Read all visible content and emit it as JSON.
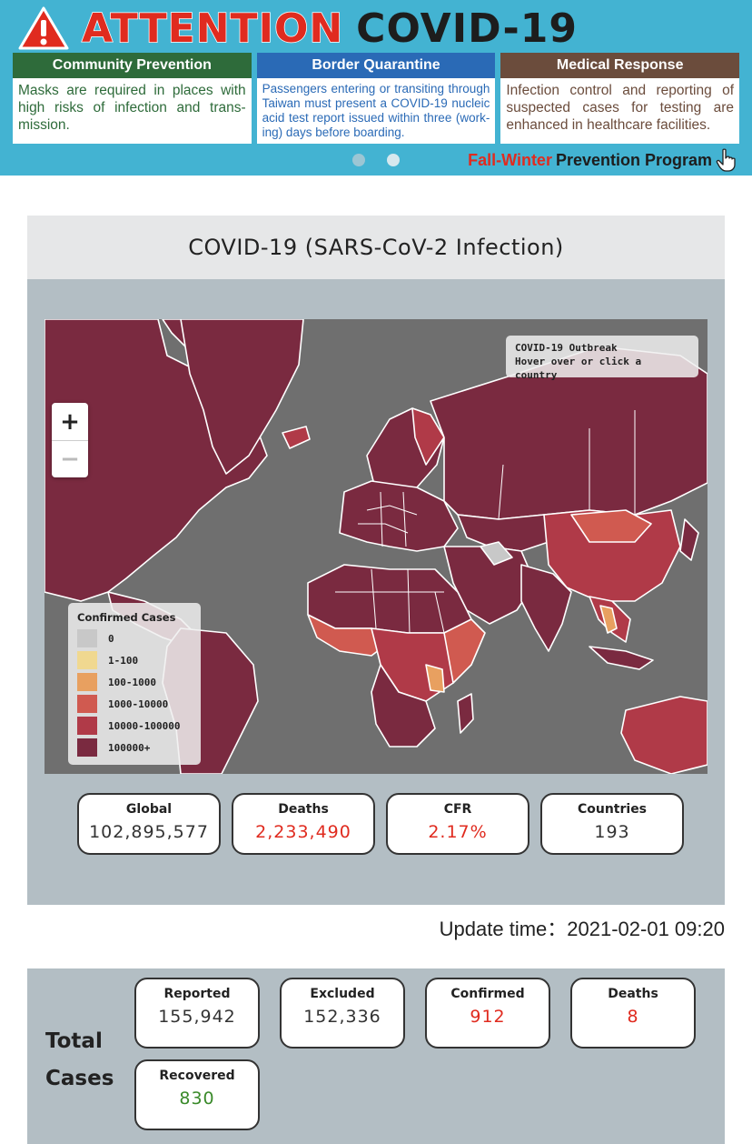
{
  "banner": {
    "title_attention": "ATTENTION",
    "title_covid": "COVID-19",
    "cards": [
      {
        "heading": "Community Prevention",
        "text": "Masks are required in places with high risks of infection and trans-mission."
      },
      {
        "heading": "Border Quarantine",
        "text": "Passengers entering or transiting through Taiwan must present a COVID-19 nucleic acid test report issued within three (work-ing) days before boarding."
      },
      {
        "heading": "Medical Response",
        "text": "Infection control and reporting of suspected cases for testing are enhanced in healthcare facilities."
      }
    ],
    "program_highlight": "Fall-Winter",
    "program_rest": "Prevention Program",
    "carousel_active_index": 1,
    "icons": {
      "warning": "warning-triangle-icon",
      "pointer": "hand-pointer-icon"
    }
  },
  "panel": {
    "title": "COVID-19 (SARS-CoV-2 Infection)"
  },
  "map": {
    "zoom_in": "+",
    "zoom_out": "−",
    "info_title": "COVID-19 Outbreak",
    "info_hint": "Hover over or click a country",
    "legend": {
      "title": "Confirmed Cases",
      "items": [
        {
          "label": "0",
          "color": "#c8c8c8"
        },
        {
          "label": "1-100",
          "color": "#f0d890"
        },
        {
          "label": "100-1000",
          "color": "#e8a060"
        },
        {
          "label": "1000-10000",
          "color": "#d05a50"
        },
        {
          "label": "10000-100000",
          "color": "#b03a48"
        },
        {
          "label": "100000+",
          "color": "#7a2a40"
        }
      ]
    }
  },
  "global_stats": [
    {
      "label": "Global",
      "value": "102,895,577",
      "style": "normal"
    },
    {
      "label": "Deaths",
      "value": "2,233,490",
      "style": "red"
    },
    {
      "label": "CFR",
      "value": "2.17%",
      "style": "red"
    },
    {
      "label": "Countries",
      "value": "193",
      "style": "normal"
    }
  ],
  "update_time": "Update time：2021-02-01 09:20",
  "totals": {
    "label_line1": "Total",
    "label_line2": "Cases",
    "items": [
      {
        "label": "Reported",
        "value": "155,942",
        "style": "normal"
      },
      {
        "label": "Excluded",
        "value": "152,336",
        "style": "normal"
      },
      {
        "label": "Confirmed",
        "value": "912",
        "style": "red"
      },
      {
        "label": "Deaths",
        "value": "8",
        "style": "red"
      },
      {
        "label": "Recovered",
        "value": "830",
        "style": "green"
      }
    ]
  },
  "colors": {
    "banner_bg": "#43b3d2",
    "accent_red": "#e02b1f",
    "recovered_green": "#3a8a2a",
    "panel_bg": "#b3bec4",
    "country_high": "#7a2a40"
  }
}
